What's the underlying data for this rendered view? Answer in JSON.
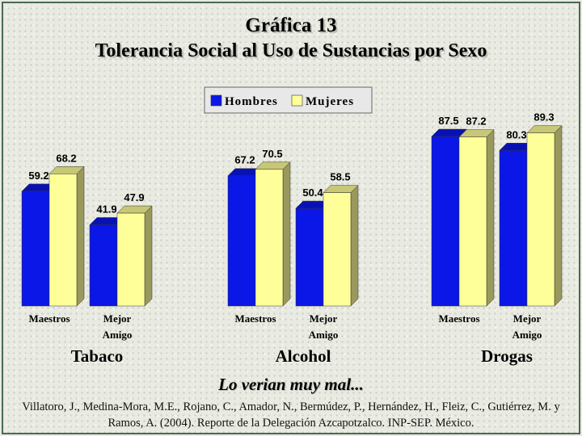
{
  "title": "Gráfica 13",
  "subtitle": "Tolerancia Social al Uso de Sustancias por Sexo",
  "note": "Lo verian muy mal...",
  "source": "Villatoro, J., Medina-Mora, M.E., Rojano, C., Amador, N., Bermúdez, P., Hernández, H., Fleiz, C., Gutiérrez, M. y Ramos, A. (2004). Reporte de la Delegación Azcapotzalco. INP-SEP. México.",
  "colors": {
    "Hombres": "#0a17e6",
    "Mujeres": "#ffff99"
  },
  "chart_data": {
    "type": "bar",
    "legend": {
      "position": "top",
      "entries": [
        "Hombres",
        "Mujeres"
      ]
    },
    "grid": false,
    "groups": [
      {
        "label": "Tabaco",
        "categories": [
          {
            "label_lines": [
              "Maestros"
            ],
            "Hombres": 59.2,
            "Mujeres": 68.2
          },
          {
            "label_lines": [
              "Mejor",
              "Amigo"
            ],
            "Hombres": 41.9,
            "Mujeres": 47.9
          }
        ]
      },
      {
        "label": "Alcohol",
        "categories": [
          {
            "label_lines": [
              "Maestros"
            ],
            "Hombres": 67.2,
            "Mujeres": 70.5
          },
          {
            "label_lines": [
              "Mejor",
              "Amigo"
            ],
            "Hombres": 50.4,
            "Mujeres": 58.5
          }
        ]
      },
      {
        "label": "Drogas",
        "categories": [
          {
            "label_lines": [
              "Maestros"
            ],
            "Hombres": 87.5,
            "Mujeres": 87.2
          },
          {
            "label_lines": [
              "Mejor",
              "Amigo"
            ],
            "Hombres": 80.3,
            "Mujeres": 89.3
          }
        ]
      }
    ]
  }
}
